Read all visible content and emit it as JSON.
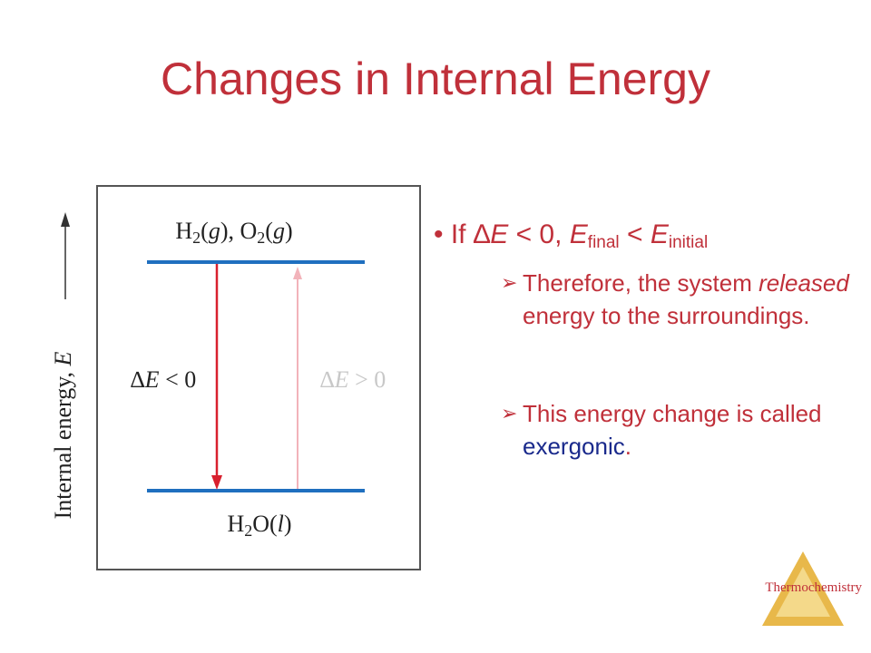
{
  "title": "Changes in Internal Energy",
  "diagram": {
    "y_axis_label": [
      "Internal energy, ",
      "E"
    ],
    "top_level": [
      "H",
      "2",
      "(",
      "g",
      "), O",
      "2",
      "(",
      "g",
      ")"
    ],
    "bottom_level": [
      "H",
      "2",
      "O(",
      "l",
      ")"
    ],
    "down_label": [
      "∆",
      "E",
      " < 0"
    ],
    "up_label": [
      "∆",
      "E",
      " > 0"
    ]
  },
  "bullet": [
    "If ",
    "∆",
    "E",
    " < 0, ",
    "E",
    "final",
    " < ",
    "E",
    "initial"
  ],
  "sub_items": [
    [
      "Therefore, the system ",
      "released",
      " energy to the surroundings."
    ],
    [
      "This energy change is called ",
      "exergonic",
      "."
    ]
  ],
  "footer": "Thermochemistry"
}
